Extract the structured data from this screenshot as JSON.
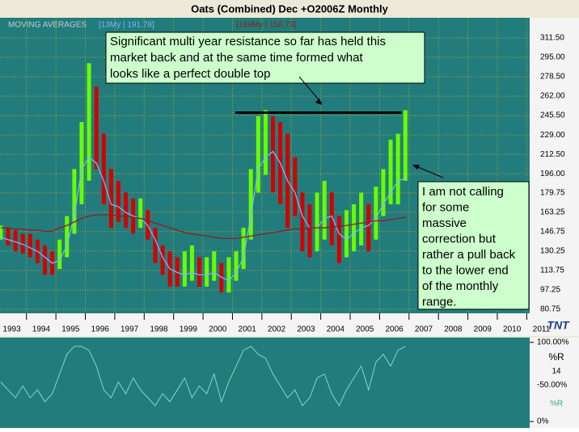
{
  "chart_data": {
    "type": "ohlc",
    "title": "Oats (Combined) Dec +O2006Z Monthly",
    "legend_title": "MOVING AVERAGES",
    "x": [
      1993.125,
      1993.375,
      1993.625,
      1993.875,
      1994.125,
      1994.375,
      1994.625,
      1994.875,
      1995.125,
      1995.375,
      1995.625,
      1995.875,
      1996.125,
      1996.375,
      1996.625,
      1996.875,
      1997.125,
      1997.375,
      1997.625,
      1997.875,
      1998.125,
      1998.375,
      1998.625,
      1998.875,
      1999.125,
      1999.375,
      1999.625,
      1999.875,
      2000.125,
      2000.375,
      2000.625,
      2000.875,
      2001.125,
      2001.375,
      2001.625,
      2001.875,
      2002.125,
      2002.375,
      2002.625,
      2002.875,
      2003.125,
      2003.375,
      2003.625,
      2003.875,
      2004.125,
      2004.375,
      2004.625,
      2004.875,
      2005.125,
      2005.375,
      2005.625,
      2005.875,
      2006.125,
      2006.375,
      2006.625,
      2006.875
    ],
    "high": [
      152,
      150,
      148,
      145,
      145,
      140,
      135,
      130,
      140,
      160,
      200,
      240,
      290,
      270,
      230,
      200,
      190,
      180,
      175,
      175,
      165,
      150,
      135,
      130,
      125,
      130,
      135,
      125,
      125,
      130,
      120,
      125,
      130,
      150,
      200,
      245,
      250,
      245,
      240,
      230,
      210,
      180,
      170,
      180,
      190,
      180,
      160,
      165,
      170,
      180,
      170,
      185,
      200,
      225,
      230,
      250
    ],
    "low": [
      140,
      135,
      130,
      128,
      125,
      120,
      110,
      110,
      115,
      125,
      145,
      170,
      190,
      200,
      170,
      150,
      155,
      150,
      145,
      150,
      140,
      120,
      110,
      100,
      100,
      100,
      105,
      100,
      100,
      105,
      95,
      95,
      105,
      115,
      140,
      180,
      195,
      180,
      170,
      150,
      160,
      130,
      125,
      130,
      140,
      135,
      120,
      125,
      130,
      135,
      130,
      140,
      160,
      170,
      170,
      190
    ],
    "series": [
      {
        "name": "[13My | 191.78]",
        "color": "#7fb3ff",
        "values": [
          142,
          140,
          138,
          136,
          133,
          130,
          125,
          120,
          122,
          135,
          160,
          200,
          210,
          205,
          190,
          170,
          168,
          163,
          160,
          158,
          152,
          140,
          125,
          115,
          112,
          110,
          112,
          110,
          110,
          112,
          108,
          105,
          112,
          125,
          160,
          200,
          210,
          215,
          205,
          190,
          180,
          160,
          150,
          150,
          158,
          160,
          145,
          140,
          145,
          150,
          152,
          158,
          170,
          180,
          190,
          192
        ]
      },
      {
        "name": "[169My | 158.73]",
        "color": "#8b2020",
        "values": [
          150,
          150,
          149,
          149,
          148,
          148,
          147,
          147,
          150,
          152,
          155,
          158,
          160,
          161,
          161,
          161,
          160,
          160,
          159,
          158,
          156,
          154,
          152,
          150,
          148,
          146,
          145,
          144,
          143,
          142,
          141,
          141,
          141,
          142,
          143,
          144,
          145,
          146,
          147,
          148,
          149,
          149,
          150,
          150,
          150,
          151,
          151,
          152,
          153,
          154,
          155,
          156,
          156,
          157,
          158,
          159
        ]
      }
    ],
    "up_color": "#66ff00",
    "down_color": "#d40000",
    "xlim": [
      1993.1,
      2011.1
    ],
    "xticks": [
      1993,
      1994,
      1995,
      1996,
      1997,
      1998,
      1999,
      2000,
      2001,
      2002,
      2003,
      2004,
      2005,
      2006,
      2007,
      2008,
      2009,
      2010,
      2011
    ],
    "ylim": [
      80.75,
      311.5
    ],
    "yticks": [
      80.75,
      97.25,
      113.75,
      130.25,
      146.75,
      163.25,
      179.75,
      {
        "value": 196,
        "label": "196.00"
      },
      {
        "value": 212.5,
        "label": "212.50"
      },
      {
        "value": 229,
        "label": "229.00"
      },
      {
        "value": 245.5,
        "label": "245.50"
      },
      {
        "value": 262,
        "label": "262.00"
      },
      {
        "value": 278.5,
        "label": "278.50"
      },
      {
        "value": 295,
        "label": "295.00"
      },
      {
        "value": 311.5,
        "label": "311.50"
      }
    ],
    "grid": true,
    "resistance": {
      "x": [
        2001.1,
        2006.75
      ],
      "y": 248
    },
    "annotations": [
      {
        "lines": [
          "Significant multi year resistance so far has held this",
          "market back and at the same time formed what",
          "looks like a perfect double top"
        ]
      },
      {
        "lines": [
          "I am not calling",
          "for some",
          "massive",
          "correction but",
          "rather a pull back",
          "to the lower end",
          "of the monthly",
          "range."
        ]
      }
    ],
    "logo": "TNT",
    "oscillator": {
      "name": "%R",
      "period": 14,
      "color": "#7fd8c8",
      "ylim": [
        0,
        100
      ],
      "yticks": [
        {
          "value": 100,
          "label": "100.00%"
        },
        {
          "value": 0,
          "label": "0%"
        }
      ],
      "mid_label": "-50.00%",
      "values": [
        50,
        40,
        30,
        45,
        30,
        40,
        25,
        35,
        60,
        85,
        95,
        95,
        90,
        70,
        40,
        30,
        50,
        35,
        55,
        40,
        30,
        20,
        35,
        25,
        40,
        55,
        30,
        45,
        35,
        60,
        25,
        50,
        70,
        90,
        95,
        85,
        80,
        60,
        45,
        30,
        40,
        20,
        30,
        55,
        60,
        35,
        20,
        40,
        55,
        70,
        40,
        75,
        85,
        70,
        90,
        95
      ]
    }
  }
}
